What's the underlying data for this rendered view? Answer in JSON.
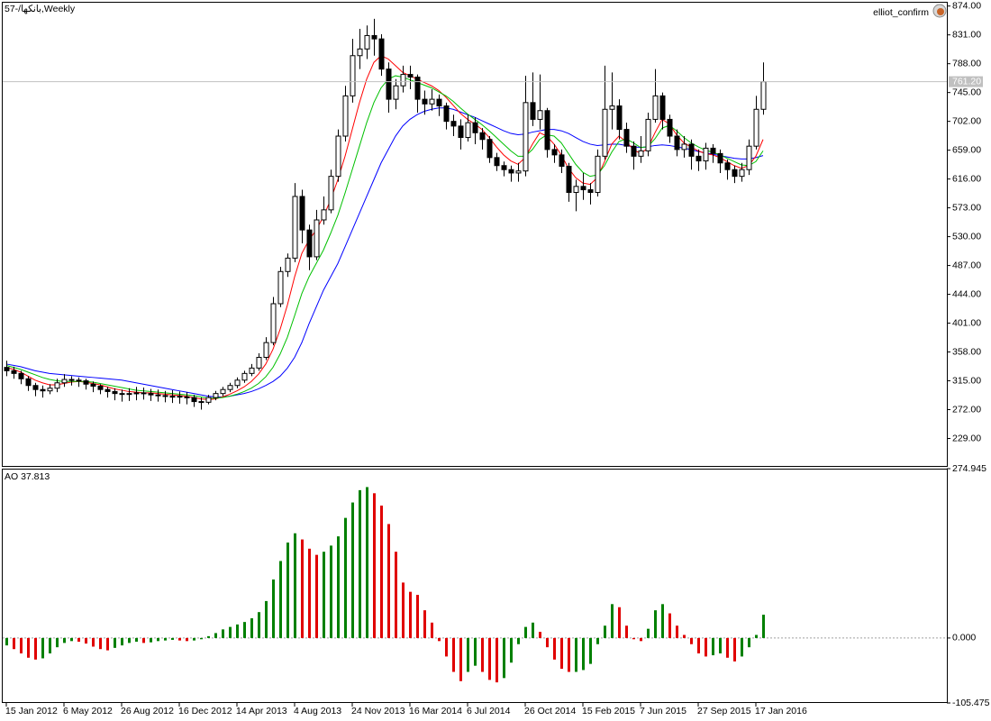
{
  "chart_data": [
    {
      "type": "candlestick",
      "title": "57-/بانكها,Weekly",
      "indicator": "elliot_confirm",
      "categories": [
        "15 Jan 2012",
        null,
        null,
        null,
        null,
        null,
        null,
        null,
        "6 May 2012",
        null,
        null,
        null,
        null,
        null,
        null,
        null,
        "26 Aug 2012",
        null,
        null,
        null,
        null,
        null,
        null,
        null,
        "16 Dec 2012",
        null,
        null,
        null,
        null,
        null,
        null,
        null,
        "14 Apr 2013",
        null,
        null,
        null,
        null,
        null,
        null,
        null,
        "4 Aug 2013",
        null,
        null,
        null,
        null,
        null,
        null,
        null,
        "24 Nov 2013",
        null,
        null,
        null,
        null,
        null,
        null,
        null,
        "16 Mar 2014",
        null,
        null,
        null,
        null,
        null,
        null,
        null,
        "6 Jul 2014",
        null,
        null,
        null,
        null,
        null,
        null,
        null,
        "26 Oct 2014",
        null,
        null,
        null,
        null,
        null,
        null,
        null,
        "15 Feb 2015",
        null,
        null,
        null,
        null,
        null,
        null,
        null,
        "7 Jun 2015",
        null,
        null,
        null,
        null,
        null,
        null,
        null,
        "27 Sep 2015",
        null,
        null,
        null,
        null,
        null,
        null,
        null,
        "17 Jan 2016",
        null
      ],
      "open": [
        335,
        330,
        326,
        318,
        308,
        302,
        300,
        304,
        312,
        317,
        316,
        315,
        310,
        307,
        302,
        299,
        296,
        295,
        296,
        297,
        296,
        294,
        293,
        292,
        292,
        291,
        290,
        284,
        283,
        290,
        296,
        302,
        308,
        316,
        326,
        334,
        350,
        372,
        430,
        478,
        498,
        590,
        540,
        500,
        555,
        570,
        620,
        680,
        740,
        800,
        810,
        830,
        825,
        780,
        735,
        755,
        772,
        768,
        735,
        728,
        735,
        725,
        702,
        695,
        678,
        700,
        685,
        675,
        648,
        636,
        630,
        625,
        628,
        730,
        705,
        718,
        660,
        652,
        635,
        596,
        605,
        600,
        596,
        650,
        720,
        725,
        690,
        665,
        650,
        658,
        705,
        740,
        705,
        680,
        660,
        668,
        650,
        643,
        662,
        654,
        640,
        630,
        620,
        630,
        665,
        720
      ],
      "high": [
        345,
        336,
        330,
        322,
        312,
        308,
        310,
        318,
        325,
        322,
        320,
        318,
        314,
        310,
        306,
        304,
        302,
        304,
        306,
        305,
        303,
        302,
        300,
        301,
        299,
        298,
        294,
        290,
        294,
        300,
        306,
        312,
        320,
        330,
        340,
        356,
        380,
        440,
        485,
        505,
        610,
        600,
        548,
        570,
        590,
        630,
        690,
        755,
        825,
        840,
        845,
        855,
        832,
        790,
        765,
        785,
        785,
        772,
        748,
        750,
        742,
        730,
        712,
        705,
        712,
        708,
        692,
        680,
        655,
        642,
        636,
        640,
        770,
        775,
        772,
        722,
        668,
        660,
        640,
        615,
        625,
        610,
        660,
        785,
        775,
        735,
        700,
        672,
        680,
        715,
        780,
        745,
        712,
        690,
        680,
        675,
        660,
        670,
        668,
        660,
        645,
        636,
        640,
        675,
        740,
        790
      ],
      "low": [
        322,
        318,
        310,
        300,
        292,
        290,
        295,
        298,
        306,
        308,
        306,
        302,
        298,
        295,
        290,
        286,
        284,
        285,
        286,
        287,
        285,
        284,
        283,
        282,
        281,
        280,
        276,
        272,
        280,
        286,
        292,
        298,
        304,
        312,
        322,
        330,
        346,
        368,
        425,
        470,
        492,
        520,
        480,
        495,
        548,
        565,
        612,
        672,
        730,
        780,
        795,
        800,
        770,
        715,
        720,
        745,
        750,
        715,
        712,
        718,
        710,
        690,
        680,
        660,
        672,
        668,
        660,
        640,
        628,
        620,
        612,
        612,
        620,
        695,
        690,
        648,
        640,
        625,
        582,
        568,
        585,
        578,
        590,
        645,
        690,
        675,
        655,
        630,
        640,
        650,
        700,
        690,
        670,
        650,
        648,
        630,
        628,
        630,
        640,
        625,
        615,
        610,
        612,
        622,
        660,
        712
      ],
      "close": [
        330,
        326,
        318,
        308,
        302,
        300,
        304,
        312,
        317,
        316,
        315,
        310,
        307,
        302,
        299,
        296,
        295,
        296,
        297,
        296,
        294,
        293,
        292,
        292,
        291,
        290,
        284,
        283,
        290,
        296,
        302,
        308,
        316,
        326,
        334,
        350,
        372,
        430,
        478,
        498,
        590,
        540,
        500,
        555,
        570,
        620,
        680,
        740,
        800,
        810,
        830,
        825,
        780,
        735,
        755,
        772,
        768,
        735,
        728,
        735,
        725,
        702,
        695,
        678,
        700,
        685,
        675,
        648,
        636,
        630,
        625,
        628,
        730,
        705,
        718,
        660,
        652,
        635,
        596,
        605,
        600,
        596,
        650,
        720,
        725,
        690,
        665,
        650,
        658,
        705,
        740,
        705,
        680,
        660,
        668,
        650,
        643,
        662,
        654,
        640,
        630,
        620,
        630,
        665,
        720,
        761.2
      ],
      "up_color": "#ffffff",
      "down_color": "#000000",
      "outline_color": "#000000",
      "lines": [
        {
          "color": "#0000ff",
          "values": [
            340,
            338,
            336,
            333,
            330,
            328,
            326,
            325,
            324,
            323,
            322,
            321,
            320,
            319,
            318,
            317,
            316,
            314,
            312,
            310,
            308,
            306,
            304,
            302,
            300,
            298,
            296,
            294,
            292,
            291,
            291,
            292,
            294,
            296,
            299,
            303,
            308,
            314,
            322,
            334,
            350,
            372,
            400,
            425,
            450,
            470,
            490,
            515,
            540,
            565,
            590,
            615,
            640,
            660,
            680,
            695,
            705,
            712,
            717,
            720,
            722,
            722,
            720,
            716,
            712,
            708,
            703,
            698,
            693,
            688,
            684,
            682,
            683,
            686,
            688,
            690,
            690,
            688,
            684,
            678,
            672,
            668,
            666,
            667,
            668,
            668,
            666,
            664,
            663,
            664,
            666,
            667,
            666,
            664,
            662,
            660,
            657,
            655,
            653,
            651,
            649,
            647,
            646,
            646,
            648,
            651
          ]
        },
        {
          "color": "#ff0000",
          "values": [
            335,
            332,
            328,
            322,
            316,
            312,
            309,
            309,
            311,
            313,
            314,
            313,
            311,
            309,
            306,
            303,
            301,
            299,
            298,
            297,
            297,
            296,
            295,
            294,
            293,
            292,
            290,
            288,
            287,
            288,
            291,
            295,
            300,
            306,
            314,
            325,
            340,
            362,
            392,
            428,
            470,
            505,
            525,
            540,
            560,
            585,
            615,
            650,
            690,
            730,
            765,
            790,
            800,
            795,
            785,
            775,
            770,
            765,
            760,
            755,
            748,
            738,
            726,
            714,
            705,
            698,
            690,
            678,
            664,
            652,
            643,
            638,
            648,
            668,
            685,
            680,
            668,
            652,
            632,
            618,
            610,
            608,
            618,
            642,
            668,
            680,
            672,
            660,
            654,
            662,
            685,
            705,
            698,
            682,
            670,
            664,
            658,
            654,
            652,
            648,
            642,
            636,
            632,
            636,
            650,
            675
          ]
        },
        {
          "color": "#00c000",
          "values": [
            338,
            335,
            332,
            328,
            324,
            320,
            317,
            315,
            314,
            314,
            314,
            314,
            313,
            311,
            309,
            307,
            305,
            303,
            301,
            300,
            299,
            298,
            297,
            296,
            295,
            294,
            293,
            291,
            289,
            289,
            290,
            292,
            295,
            299,
            304,
            311,
            321,
            335,
            355,
            380,
            412,
            445,
            470,
            490,
            510,
            535,
            562,
            595,
            630,
            665,
            700,
            730,
            752,
            765,
            770,
            768,
            764,
            760,
            756,
            752,
            746,
            740,
            732,
            722,
            713,
            705,
            697,
            688,
            678,
            668,
            658,
            650,
            650,
            660,
            675,
            682,
            680,
            670,
            654,
            638,
            626,
            620,
            622,
            636,
            656,
            672,
            676,
            670,
            663,
            664,
            676,
            692,
            696,
            688,
            678,
            670,
            664,
            659,
            656,
            652,
            647,
            642,
            637,
            636,
            642,
            658
          ]
        }
      ],
      "ylim": [
        188,
        879
      ],
      "yticks": [
        {
          "value": 874,
          "label": "874.00"
        },
        {
          "value": 831,
          "label": "831.00"
        },
        {
          "value": 788,
          "label": "788.00"
        },
        {
          "value": 745,
          "label": "745.00"
        },
        {
          "value": 702,
          "label": "702.00"
        },
        {
          "value": 659,
          "label": "659.00"
        },
        {
          "value": 616,
          "label": "616.00"
        },
        {
          "value": 573,
          "label": "573.00"
        },
        {
          "value": 530,
          "label": "530.00"
        },
        {
          "value": 487,
          "label": "487.00"
        },
        {
          "value": 444,
          "label": "444.00"
        },
        {
          "value": 401,
          "label": "401.00"
        },
        {
          "value": 358,
          "label": "358.00"
        },
        {
          "value": 315,
          "label": "315.00"
        },
        {
          "value": 272,
          "label": "272.00"
        },
        {
          "value": 229,
          "label": "229.00"
        }
      ],
      "last_price": {
        "value": 761.2,
        "label": "761.20"
      },
      "last_price_color": "#c0c0c0"
    },
    {
      "type": "bar",
      "title": "AO 37.813",
      "values": [
        -12,
        -18,
        -25,
        -32,
        -35,
        -33,
        -25,
        -15,
        -8,
        -5,
        -6,
        -9,
        -14,
        -18,
        -20,
        -16,
        -12,
        -8,
        -6,
        -8,
        -7,
        -5,
        -4,
        -3,
        -4,
        -5,
        -4,
        -2,
        3,
        8,
        14,
        18,
        22,
        26,
        32,
        42,
        60,
        95,
        125,
        155,
        170,
        160,
        145,
        135,
        140,
        150,
        165,
        195,
        220,
        240,
        245,
        235,
        215,
        185,
        140,
        90,
        75,
        70,
        45,
        25,
        -5,
        -30,
        -55,
        -70,
        -55,
        -45,
        -55,
        -68,
        -72,
        -65,
        -40,
        -10,
        18,
        25,
        10,
        -15,
        -35,
        -50,
        -55,
        -55,
        -52,
        -42,
        -10,
        20,
        55,
        50,
        20,
        -2,
        -5,
        15,
        45,
        55,
        40,
        20,
        5,
        -10,
        -25,
        -30,
        -28,
        -25,
        -32,
        -38,
        -30,
        -15,
        5,
        37.813
      ],
      "up_color": "#008000",
      "down_color": "#e00000",
      "ylim": [
        -105.475,
        274.945
      ],
      "yticks": [
        274.945,
        {
          "value": 0,
          "label": "0.000"
        },
        -105.475
      ],
      "levels": [
        0
      ]
    }
  ]
}
